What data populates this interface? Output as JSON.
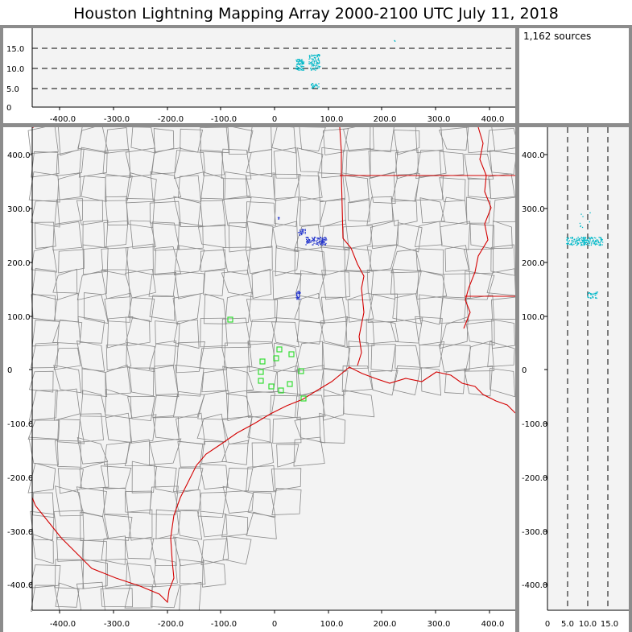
{
  "title": "Houston Lightning Mapping Array   2000-2100 UTC  July 11, 2018",
  "source_count": "1,162 sources",
  "colors": {
    "panel_bg": "#f3f3f3",
    "frame": "#8c8c8c",
    "county": "#8a8a8a",
    "state_border": "#d40000",
    "station": "#33dd33",
    "source_early": "#2233cc",
    "source_late": "#00b8c8"
  },
  "top_panel": {
    "y_ticks": [
      "0",
      "5.0",
      "10.0",
      "15.0"
    ],
    "x_ticks": [
      "-400.0",
      "-300.0",
      "-200.0",
      "-100.0",
      "0",
      "100.0",
      "200.0",
      "300.0",
      "400.0"
    ]
  },
  "plan_panel": {
    "y_ticks": [
      "400.0",
      "300.0",
      "200.0",
      "100.0",
      "0",
      "-100.0",
      "-200.0",
      "-300.0",
      "-400.0"
    ],
    "x_ticks": [
      "-400.0",
      "-300.0",
      "-200.0",
      "-100.0",
      "0",
      "100.0",
      "200.0",
      "300.0",
      "400.0"
    ]
  },
  "side_panel": {
    "y_ticks": [
      "400.0",
      "300.0",
      "200.0",
      "100.0",
      "0",
      "-100.0",
      "-200.0",
      "-300.0",
      "-400.0"
    ],
    "x_ticks": [
      "0",
      "5.0",
      "10.0",
      "15.0"
    ]
  }
}
